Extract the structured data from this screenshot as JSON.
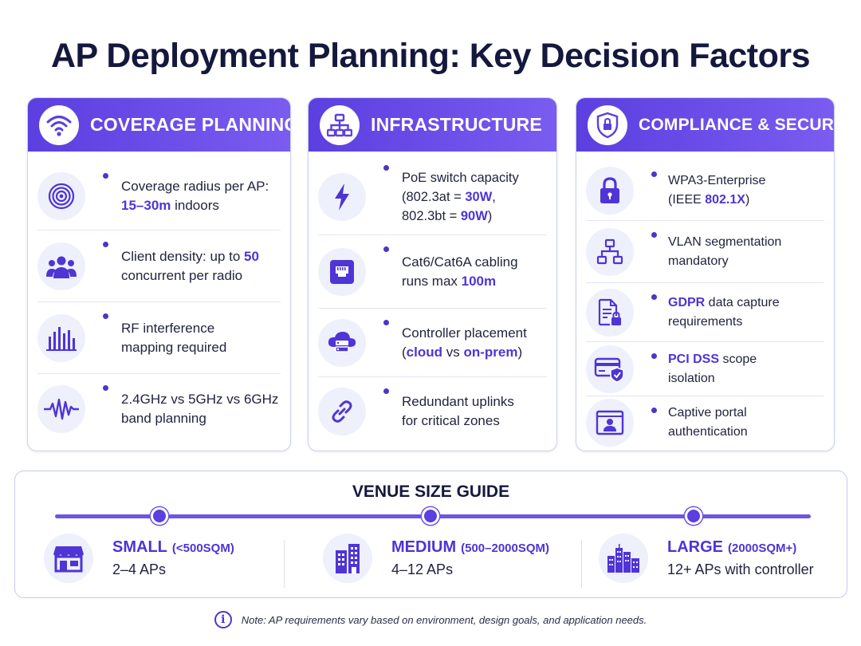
{
  "title": "AP Deployment Planning: Key Decision Factors",
  "colors": {
    "accent": "#5b3fe0",
    "highlight": "#4f34d6",
    "icon_bg": "#eef0fb",
    "text": "#22243f"
  },
  "cards": [
    {
      "title": "COVERAGE PLANNING",
      "icon": "wifi-icon",
      "items": [
        {
          "icon": "radius-icon",
          "parts": [
            "Coverage radius per AP:",
            "15–30m",
            " indoors"
          ]
        },
        {
          "icon": "users-icon",
          "parts": [
            "Client density: up to ",
            "50",
            "concurrent per radio"
          ]
        },
        {
          "icon": "signal-bars-icon",
          "parts": [
            "RF interference",
            "mapping required"
          ]
        },
        {
          "icon": "waveform-icon",
          "parts": [
            "2.4GHz vs 5GHz vs 6GHz",
            "band planning"
          ]
        }
      ]
    },
    {
      "title": "INFRASTRUCTURE",
      "icon": "network-icon",
      "items": [
        {
          "icon": "lightning-icon",
          "parts": [
            "PoE switch capacity",
            "(802.3at = ",
            "30W",
            ",",
            "802.3bt = ",
            "90W",
            ")"
          ]
        },
        {
          "icon": "ethernet-port-icon",
          "parts": [
            "Cat6/Cat6A cabling",
            "runs max ",
            "100m"
          ]
        },
        {
          "icon": "cloud-server-icon",
          "parts": [
            "Controller placement",
            "(",
            "cloud",
            " vs ",
            "on-prem",
            ")"
          ]
        },
        {
          "icon": "link-icon",
          "parts": [
            "Redundant uplinks",
            "for critical zones"
          ]
        }
      ]
    },
    {
      "title": "COMPLIANCE & SECURITY",
      "icon": "shield-lock-icon",
      "items": [
        {
          "icon": "padlock-icon",
          "parts": [
            "WPA3-Enterprise",
            "(IEEE ",
            "802.1X",
            ")"
          ]
        },
        {
          "icon": "vlan-tree-icon",
          "parts": [
            "VLAN segmentation",
            "mandatory"
          ]
        },
        {
          "icon": "document-lock-icon",
          "parts": [
            "GDPR",
            " data capture",
            "requirements"
          ]
        },
        {
          "icon": "card-shield-icon",
          "parts": [
            "PCI DSS",
            " scope",
            "isolation"
          ]
        },
        {
          "icon": "portal-user-icon",
          "parts": [
            "Captive portal",
            "authentication"
          ]
        }
      ]
    }
  ],
  "venue": {
    "title": "VENUE SIZE GUIDE",
    "sizes": [
      {
        "name": "SMALL",
        "range": "(<500SQM)",
        "count": "2–4 APs",
        "icon": "storefront-icon"
      },
      {
        "name": "MEDIUM",
        "range": "(500–2000SQM)",
        "count": "4–12 APs",
        "icon": "building-icon"
      },
      {
        "name": "LARGE",
        "range": "(2000SQM+)",
        "count": "12+ APs with controller",
        "icon": "city-icon"
      }
    ]
  },
  "note": "Note: AP requirements vary based on environment, design goals, and application needs."
}
